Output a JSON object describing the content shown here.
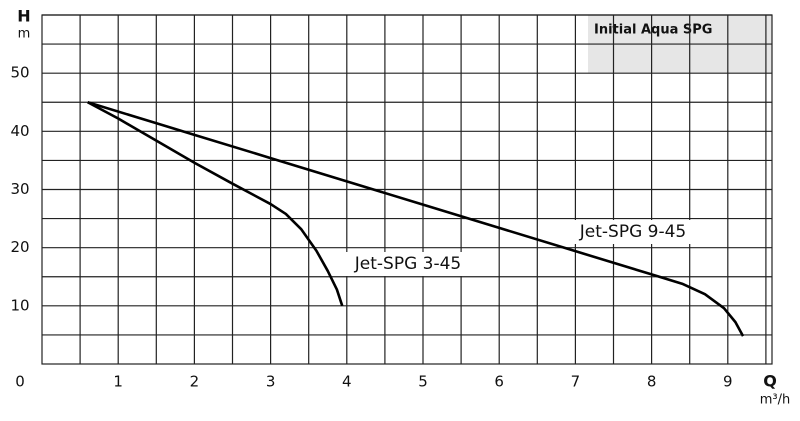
{
  "chart_data": {
    "type": "line",
    "title": "Initial Aqua SPG",
    "y_label": "H",
    "y_unit": "m",
    "x_label": "Q",
    "x_unit": "m³/h",
    "origin_label": "0",
    "xlim": [
      0,
      9.58
    ],
    "ylim": [
      0,
      60
    ],
    "xticks": [
      1,
      2,
      3,
      4,
      5,
      6,
      7,
      8,
      9
    ],
    "yticks": [
      10,
      20,
      30,
      40,
      50
    ],
    "x_minor_ticks": [
      0.5,
      1.5,
      2.5,
      3.5,
      4.5,
      5.5,
      6.5,
      7.5,
      8.5,
      9.5
    ],
    "y_minor_ticks": [
      5,
      15,
      25,
      35,
      45,
      55,
      60
    ],
    "grid": true,
    "series": [
      {
        "name": "Jet-SPG 3-45",
        "color": "#000000",
        "x": [
          0.6,
          1,
          1.5,
          2,
          2.5,
          3,
          3.2,
          3.4,
          3.6,
          3.75,
          3.87,
          3.94
        ],
        "values": [
          45,
          42.2,
          38.4,
          34.6,
          31,
          27.5,
          25.8,
          23.2,
          19.5,
          16,
          12.8,
          10
        ]
      },
      {
        "name": "Jet-SPG 9-45",
        "color": "#000000",
        "x": [
          0.6,
          2,
          3,
          4,
          5,
          6,
          7,
          8,
          8.4,
          8.7,
          8.95,
          9.1,
          9.2
        ],
        "values": [
          45,
          39.4,
          35.4,
          31.4,
          27.4,
          23.4,
          19.4,
          15.4,
          13.8,
          12,
          9.6,
          7.2,
          4.8
        ]
      }
    ]
  }
}
